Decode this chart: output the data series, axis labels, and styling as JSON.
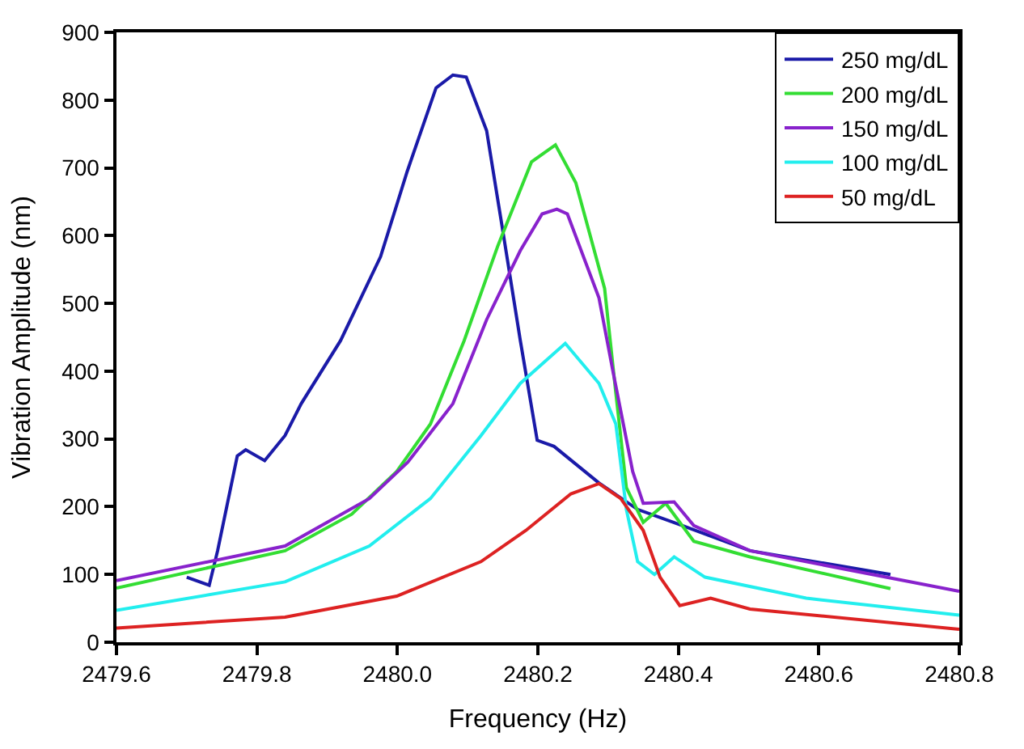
{
  "chart_data": {
    "type": "line",
    "xlabel": "Frequency (Hz)",
    "ylabel": "Vibration Amplitude (nm)",
    "xlim": [
      2479.6,
      2480.8
    ],
    "ylim": [
      0,
      900
    ],
    "xticks": [
      {
        "value": 2479.6,
        "label": "2479.6"
      },
      {
        "value": 2479.8,
        "label": "2479.8"
      },
      {
        "value": 2480.0,
        "label": "2480.0"
      },
      {
        "value": 2480.2,
        "label": "2480.2"
      },
      {
        "value": 2480.4,
        "label": "2480.4"
      },
      {
        "value": 2480.6,
        "label": "2480.6"
      },
      {
        "value": 2480.8,
        "label": "2480.8"
      }
    ],
    "yticks": [
      0,
      100,
      200,
      300,
      400,
      500,
      600,
      700,
      800,
      900
    ],
    "legend": "top right",
    "marker": "none",
    "line_style": "solid",
    "series": [
      {
        "name": "250 mg/dL",
        "color": "#1a1aa8",
        "x": [
          2479.7,
          2479.732,
          2479.744,
          2479.772,
          2479.784,
          2479.811,
          2479.84,
          2479.863,
          2479.919,
          2479.976,
          2480.014,
          2480.055,
          2480.079,
          2480.098,
          2480.127,
          2480.151,
          2480.175,
          2480.199,
          2480.223,
          2480.287,
          2480.342,
          2480.406,
          2480.502,
          2480.702
        ],
        "values": [
          96,
          84,
          135,
          275,
          284,
          268,
          305,
          352,
          445,
          569,
          695,
          818,
          837,
          834,
          755,
          601,
          445,
          298,
          289,
          235,
          196,
          172,
          135,
          100
        ]
      },
      {
        "name": "200 mg/dL",
        "color": "#33dd33",
        "x": [
          2479.6,
          2479.84,
          2479.935,
          2479.999,
          2480.047,
          2480.095,
          2480.143,
          2480.191,
          2480.225,
          2480.254,
          2480.295,
          2480.311,
          2480.326,
          2480.35,
          2480.382,
          2480.422,
          2480.502,
          2480.702
        ],
        "values": [
          80,
          135,
          189,
          252,
          322,
          445,
          585,
          709,
          734,
          678,
          522,
          368,
          228,
          177,
          205,
          149,
          126,
          79
        ]
      },
      {
        "name": "150 mg/dL",
        "color": "#8822cc",
        "x": [
          2479.6,
          2479.84,
          2479.96,
          2480.015,
          2480.079,
          2480.127,
          2480.175,
          2480.206,
          2480.227,
          2480.242,
          2480.287,
          2480.307,
          2480.335,
          2480.35,
          2480.394,
          2480.422,
          2480.502,
          2480.8
        ],
        "values": [
          91,
          142,
          212,
          266,
          352,
          476,
          578,
          632,
          639,
          632,
          508,
          399,
          252,
          205,
          207,
          172,
          135,
          75
        ]
      },
      {
        "name": "100 mg/dL",
        "color": "#22eeee",
        "x": [
          2479.6,
          2479.84,
          2479.96,
          2480.047,
          2480.119,
          2480.175,
          2480.239,
          2480.287,
          2480.311,
          2480.326,
          2480.342,
          2480.366,
          2480.394,
          2480.438,
          2480.582,
          2480.8
        ],
        "values": [
          47,
          89,
          142,
          212,
          305,
          382,
          441,
          382,
          322,
          196,
          119,
          100,
          126,
          96,
          65,
          40
        ]
      },
      {
        "name": "50 mg/dL",
        "color": "#dd2222",
        "x": [
          2479.6,
          2479.84,
          2479.999,
          2480.119,
          2480.183,
          2480.247,
          2480.287,
          2480.318,
          2480.35,
          2480.374,
          2480.402,
          2480.446,
          2480.502,
          2480.8
        ],
        "values": [
          21,
          37,
          68,
          119,
          165,
          219,
          234,
          212,
          165,
          96,
          54,
          65,
          49,
          19
        ]
      }
    ]
  }
}
